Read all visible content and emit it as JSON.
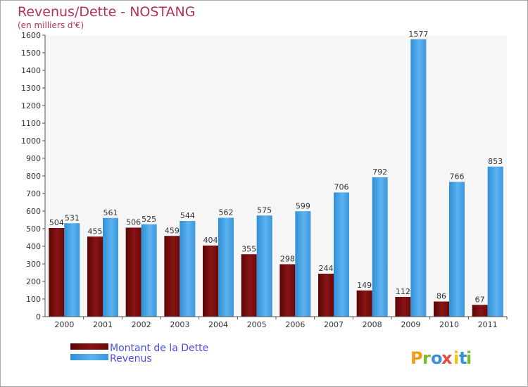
{
  "chart_data": {
    "type": "bar",
    "title": "Revenus/Dette - NOSTANG",
    "subtitle": "(en milliers d'€)",
    "categories": [
      "2000",
      "2001",
      "2002",
      "2003",
      "2004",
      "2005",
      "2006",
      "2007",
      "2008",
      "2009",
      "2010",
      "2011"
    ],
    "series": [
      {
        "name": "Montant de la Dette",
        "color": "#7a0f0f",
        "values": [
          504,
          455,
          506,
          459,
          404,
          355,
          298,
          244,
          149,
          112,
          86,
          67
        ]
      },
      {
        "name": "Revenus",
        "color": "#4ba3e3",
        "values": [
          531,
          561,
          525,
          544,
          562,
          575,
          599,
          706,
          792,
          1577,
          766,
          853
        ]
      }
    ],
    "ylim": [
      0,
      1600
    ],
    "yticks": [
      0,
      100,
      200,
      300,
      400,
      500,
      600,
      700,
      800,
      900,
      1000,
      1100,
      1200,
      1300,
      1400,
      1500,
      1600
    ],
    "grid": false,
    "legend_position": "bottom-left"
  },
  "brand": {
    "letters": [
      "P",
      "r",
      "o",
      "x",
      "i",
      "t",
      "i"
    ],
    "colors": [
      "#f39c12",
      "#7dbb2e",
      "#3a8fd6",
      "#e74c3c",
      "#f1c40f",
      "#3a8fd6",
      "#7dbb2e"
    ]
  }
}
